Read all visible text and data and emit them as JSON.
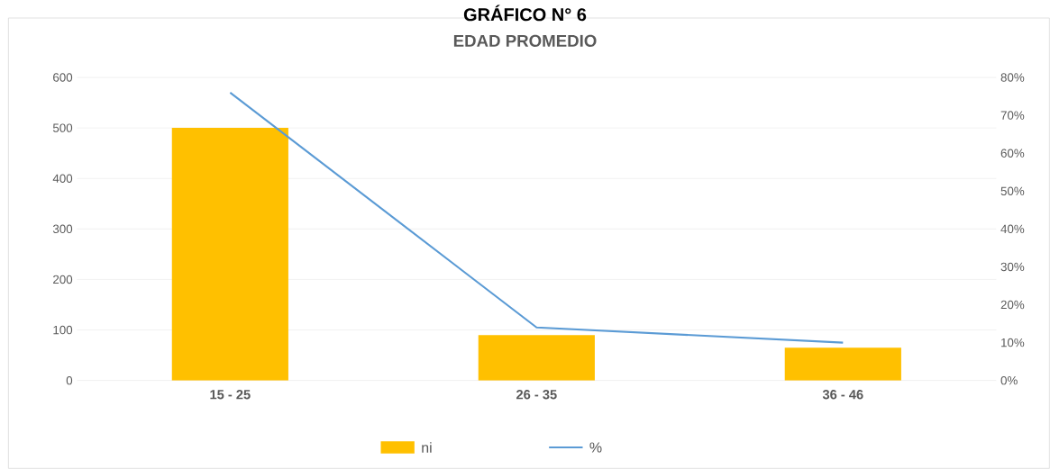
{
  "chart_data": {
    "type": "bar",
    "title": "GRÁFICO N° 6",
    "subtitle": "EDAD    PROMEDIO",
    "categories": [
      "15 - 25",
      "26 - 35",
      "36 - 46"
    ],
    "series": [
      {
        "name": "ni",
        "color": "#ffc000",
        "values": [
          500,
          90,
          65
        ]
      },
      {
        "name": "%",
        "type": "line",
        "axis": "y2",
        "color": "#5b9bd5",
        "values": [
          76,
          14,
          10
        ]
      }
    ],
    "ylim": [
      0,
      600
    ],
    "yticks": [
      0,
      100,
      200,
      300,
      400,
      500,
      600
    ],
    "y2lim": [
      0,
      80
    ],
    "y2ticks": [
      {
        "value": 0,
        "label": "0%"
      },
      {
        "value": 10,
        "label": "10%"
      },
      {
        "value": 20,
        "label": "20%"
      },
      {
        "value": 30,
        "label": "30%"
      },
      {
        "value": 40,
        "label": "40%"
      },
      {
        "value": 50,
        "label": "50%"
      },
      {
        "value": 60,
        "label": "60%"
      },
      {
        "value": 70,
        "label": "70%"
      },
      {
        "value": 80,
        "label": "80%"
      }
    ],
    "grid": "y",
    "legend": "bottom",
    "marker": "none"
  }
}
